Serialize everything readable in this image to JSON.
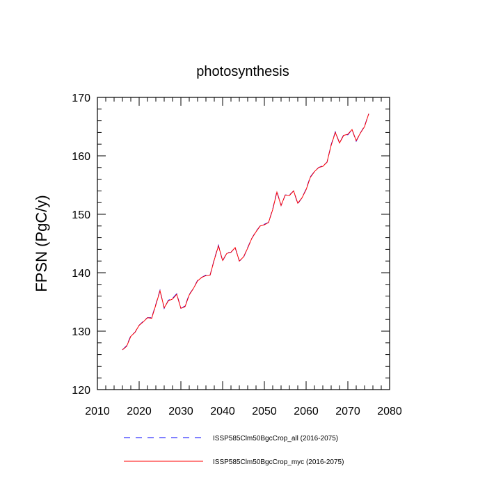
{
  "chart_data": {
    "type": "line",
    "title": "photosynthesis",
    "xlabel": "",
    "ylabel": "FPSN  (PgC/y)",
    "xlim": [
      2010,
      2080
    ],
    "ylim": [
      120,
      170
    ],
    "x_ticks": [
      2010,
      2020,
      2030,
      2040,
      2050,
      2060,
      2070,
      2080
    ],
    "y_ticks": [
      120,
      130,
      140,
      150,
      160,
      170
    ],
    "grid": false,
    "legend_position": "bottom",
    "x": [
      2016,
      2017,
      2018,
      2019,
      2020,
      2021,
      2022,
      2023,
      2024,
      2025,
      2026,
      2027,
      2028,
      2029,
      2030,
      2031,
      2032,
      2033,
      2034,
      2035,
      2036,
      2037,
      2038,
      2039,
      2040,
      2041,
      2042,
      2043,
      2044,
      2045,
      2046,
      2047,
      2048,
      2049,
      2050,
      2051,
      2052,
      2053,
      2054,
      2055,
      2056,
      2057,
      2058,
      2059,
      2060,
      2061,
      2062,
      2063,
      2064,
      2065,
      2066,
      2067,
      2068,
      2069,
      2070,
      2071,
      2072,
      2073,
      2074,
      2075
    ],
    "series": [
      {
        "name": "ISSP585Clm50BgcCrop_all (2016-2075)",
        "color": "#0000ff",
        "dash": "dashed",
        "values": [
          126.8,
          127.5,
          129.2,
          129.8,
          131.0,
          131.7,
          132.3,
          132.3,
          134.6,
          137.0,
          133.9,
          135.3,
          135.6,
          136.4,
          133.9,
          134.3,
          136.3,
          137.3,
          138.7,
          139.2,
          139.6,
          139.6,
          142.3,
          144.7,
          142.0,
          143.4,
          143.5,
          144.3,
          142.0,
          142.6,
          144.3,
          145.9,
          147.1,
          148.0,
          148.3,
          148.6,
          150.9,
          153.9,
          151.5,
          153.3,
          153.3,
          154.0,
          151.8,
          152.8,
          154.3,
          156.4,
          157.3,
          158.0,
          158.3,
          158.9,
          161.9,
          164.1,
          162.2,
          163.6,
          163.6,
          164.5,
          162.5,
          163.9,
          165.1,
          167.2
        ]
      },
      {
        "name": "ISSP585Clm50BgcCrop_myc (2016-2075)",
        "color": "#ff0000",
        "dash": "solid",
        "values": [
          126.8,
          127.4,
          129.1,
          129.8,
          131.0,
          131.6,
          132.3,
          132.2,
          134.5,
          136.9,
          134.0,
          135.2,
          135.5,
          136.3,
          133.9,
          134.2,
          136.2,
          137.3,
          138.6,
          139.2,
          139.5,
          139.6,
          142.2,
          144.6,
          142.1,
          143.3,
          143.5,
          144.3,
          142.0,
          142.7,
          144.2,
          145.9,
          147.0,
          148.0,
          148.2,
          148.6,
          150.8,
          153.8,
          151.5,
          153.3,
          153.2,
          154.0,
          151.9,
          152.8,
          154.2,
          156.3,
          157.3,
          158.0,
          158.2,
          158.9,
          161.8,
          164.0,
          162.2,
          163.5,
          163.7,
          164.5,
          162.6,
          163.9,
          165.0,
          167.2
        ]
      }
    ]
  }
}
